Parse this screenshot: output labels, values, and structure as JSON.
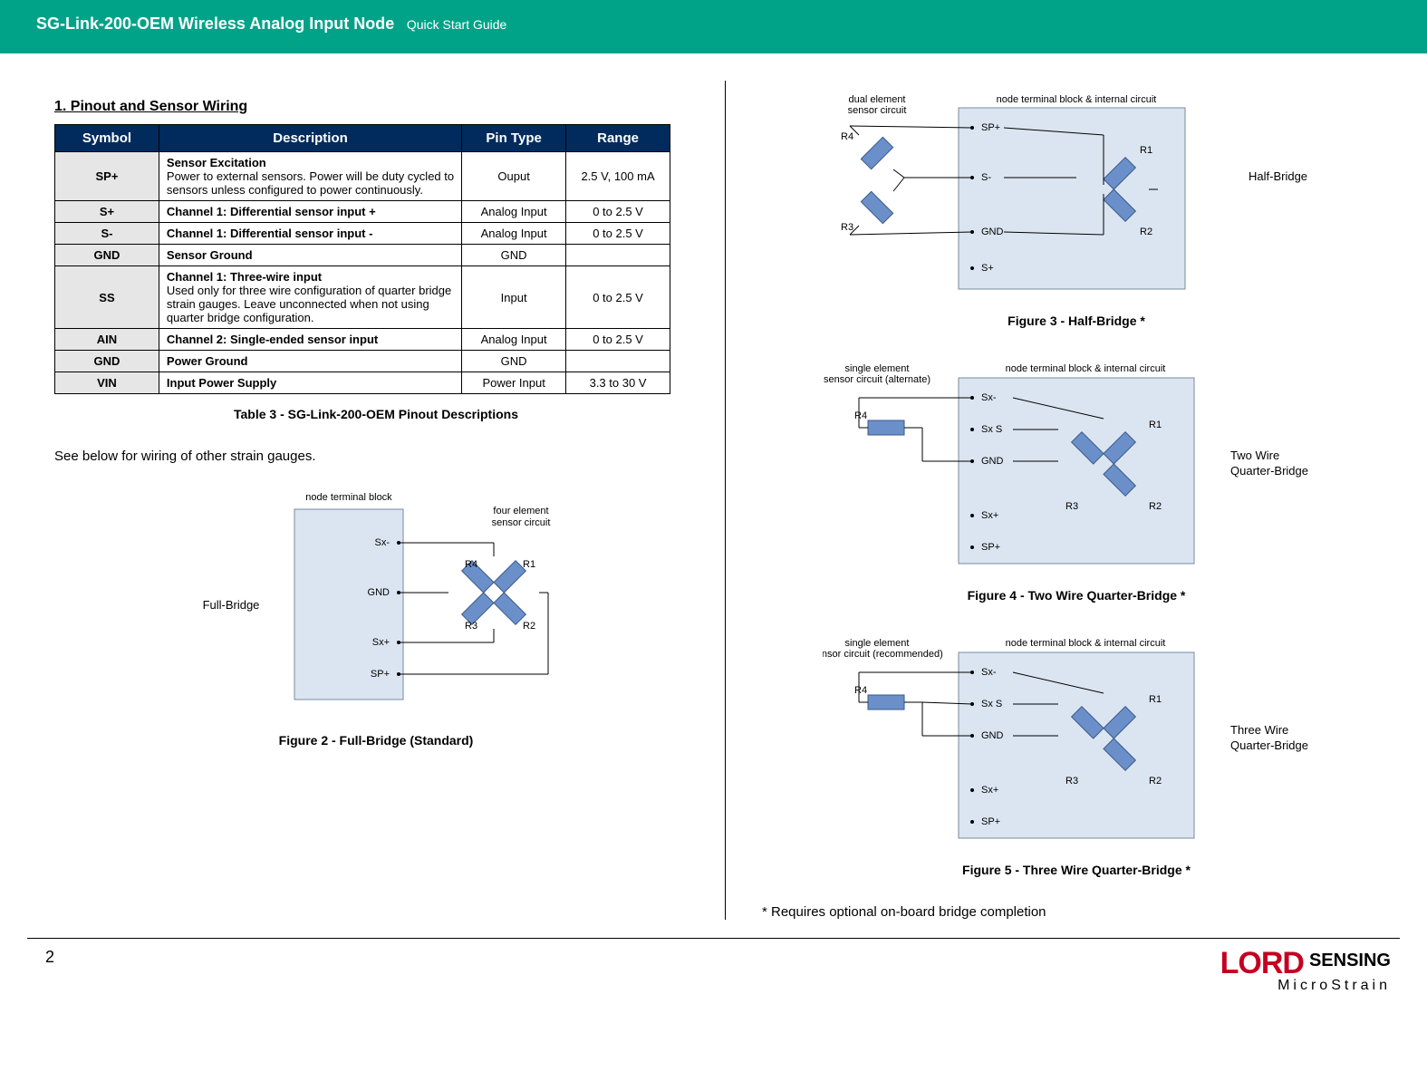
{
  "header": {
    "title": "SG-Link-200-OEM Wireless Analog Input Node",
    "subtitle": "Quick Start Guide"
  },
  "section_heading": "1.  Pinout and Sensor Wiring",
  "table": {
    "headers": [
      "Symbol",
      "Description",
      "Pin Type",
      "Range"
    ],
    "rows": [
      {
        "sym": "SP+",
        "desc_b": "Sensor Excitation",
        "desc": "Power to external sensors. Power will be duty cycled to sensors unless configured to power continuously.",
        "pt": "Ouput",
        "rng": "2.5 V, 100 mA"
      },
      {
        "sym": "S+",
        "desc_b": "Channel 1: Differential sensor input +",
        "desc": "",
        "pt": "Analog Input",
        "rng": "0 to 2.5 V"
      },
      {
        "sym": "S-",
        "desc_b": "Channel 1: Differential sensor input -",
        "desc": "",
        "pt": "Analog Input",
        "rng": "0 to 2.5 V"
      },
      {
        "sym": "GND",
        "desc_b": "Sensor Ground",
        "desc": "",
        "pt": "GND",
        "rng": ""
      },
      {
        "sym": "SS",
        "desc_b": "Channel 1: Three-wire input",
        "desc": "Used only for three wire configuration of quarter bridge strain gauges. Leave unconnected when not using quarter bridge configuration.",
        "pt": "Input",
        "rng": "0 to 2.5 V"
      },
      {
        "sym": "AIN",
        "desc_b": "Channel 2: Single-ended sensor input",
        "desc": "",
        "pt": "Analog Input",
        "rng": "0 to 2.5 V"
      },
      {
        "sym": "GND",
        "desc_b": "Power Ground",
        "desc": "",
        "pt": "GND",
        "rng": ""
      },
      {
        "sym": "VIN",
        "desc_b": "Input Power Supply",
        "desc": "",
        "pt": "Power Input",
        "rng": "3.3 to 30 V"
      }
    ],
    "caption": "Table 3 - SG-Link-200-OEM Pinout Descriptions"
  },
  "body_text": "See below for wiring of other strain gauges.",
  "figures": {
    "fig2": {
      "caption": "Figure 2 - Full-Bridge (Standard)",
      "terminal_label": "node terminal block",
      "side_label": "Full-Bridge",
      "circuit_label": "four element\nsensor circuit",
      "pins": [
        "Sx-",
        "GND",
        "Sx+",
        "SP+"
      ],
      "res": [
        "R4",
        "R1",
        "R3",
        "R2"
      ]
    },
    "fig3": {
      "caption": "Figure 3 - Half-Bridge *",
      "terminal_label": "node terminal block & internal circuit",
      "side_label": "Half-Bridge",
      "left_label": "dual element\nsensor circuit",
      "pins": [
        "SP+",
        "S-",
        "GND",
        "S+"
      ],
      "res": [
        "R4",
        "R1",
        "R3",
        "R2"
      ]
    },
    "fig4": {
      "caption": "Figure 4 - Two Wire Quarter-Bridge *",
      "terminal_label": "node terminal block & internal circuit",
      "side_label": "Two Wire\nQuarter-Bridge",
      "left_label": "single element\nsensor circuit (alternate)",
      "pins": [
        "Sx-",
        "Sx S",
        "GND",
        "Sx+",
        "SP+"
      ],
      "res": [
        "R4",
        "R1",
        "R3",
        "R2"
      ]
    },
    "fig5": {
      "caption": "Figure 5 - Three Wire Quarter-Bridge *",
      "terminal_label": "node terminal block & internal circuit",
      "side_label": "Three Wire\nQuarter-Bridge",
      "left_label": "single element\nsensor circuit  (recommended)",
      "pins": [
        "Sx-",
        "Sx S",
        "GND",
        "Sx+",
        "SP+"
      ],
      "res": [
        "R4",
        "R1",
        "R3",
        "R2"
      ]
    }
  },
  "footnote": "* Requires optional on-board bridge completion",
  "footer": {
    "page": "2",
    "brand_main": "LORD",
    "brand_sub": "SENSING",
    "brand_line": "MicroStrain"
  },
  "colors": {
    "header_bg": "#00a388",
    "th_bg": "#002b5c",
    "sym_bg": "#e6e6e6",
    "diagram_box": "#dbe5f1",
    "resistor": "#6b8fc9",
    "brand_red": "#c40021"
  }
}
